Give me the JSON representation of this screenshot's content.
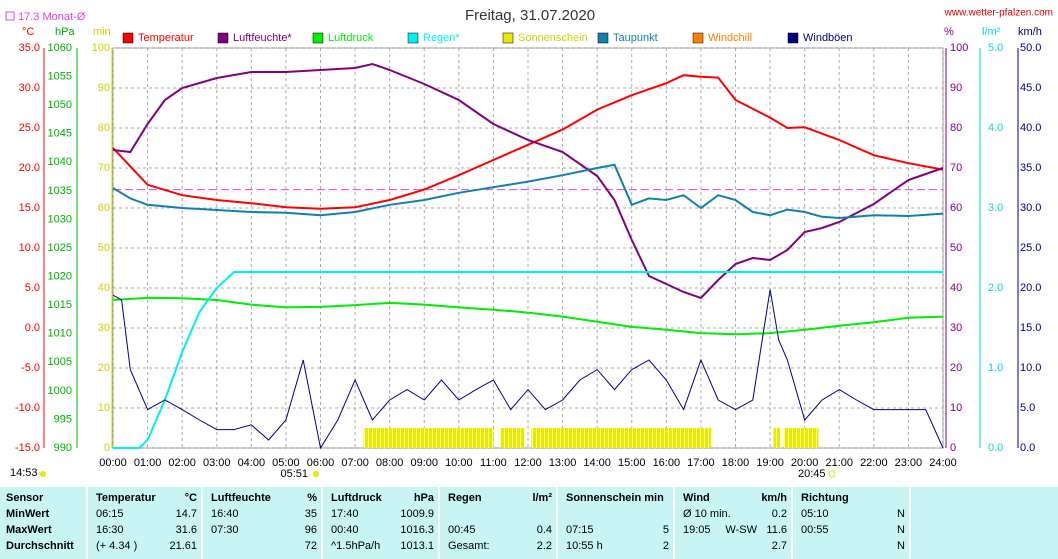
{
  "chart_data": {
    "type": "line",
    "title": "Freitag, 31.07.2020",
    "source": "www.wetter-pfalzen.com",
    "reference": {
      "value": 17.3,
      "label": "17.3 Monat-Ø",
      "color": "#e040e0",
      "axis": "°C"
    },
    "updated": "14:53",
    "sunrise": "05:51",
    "sunset": "20:45",
    "grid": true,
    "xlim": [
      0,
      24
    ],
    "xticks": [
      {
        "value": 0,
        "label": "00:00"
      },
      {
        "value": 1,
        "label": "01:00"
      },
      {
        "value": 2,
        "label": "02:00"
      },
      {
        "value": 3,
        "label": "03:00"
      },
      {
        "value": 4,
        "label": "04:00"
      },
      {
        "value": 5,
        "label": "05:00"
      },
      {
        "value": 6,
        "label": "06:00"
      },
      {
        "value": 7,
        "label": "07:00"
      },
      {
        "value": 8,
        "label": "08:00"
      },
      {
        "value": 9,
        "label": "09:00"
      },
      {
        "value": 10,
        "label": "10:00"
      },
      {
        "value": 11,
        "label": "11:00"
      },
      {
        "value": 12,
        "label": "12:00"
      },
      {
        "value": 13,
        "label": "13:00"
      },
      {
        "value": 14,
        "label": "14:00"
      },
      {
        "value": 15,
        "label": "15:00"
      },
      {
        "value": 16,
        "label": "16:00"
      },
      {
        "value": 17,
        "label": "17:00"
      },
      {
        "value": 18,
        "label": "18:00"
      },
      {
        "value": 19,
        "label": "19:00"
      },
      {
        "value": 20,
        "label": "20:00"
      },
      {
        "value": 21,
        "label": "21:00"
      },
      {
        "value": 22,
        "label": "22:00"
      },
      {
        "value": 23,
        "label": "23:00"
      },
      {
        "value": 24,
        "label": "24:00"
      }
    ],
    "axes": [
      {
        "unit": "°C",
        "side": "left",
        "color": "#ff0000",
        "lim": [
          -15,
          35
        ],
        "ticks": [
          {
            "value": 35,
            "label": "35.0"
          },
          {
            "value": 30,
            "label": "30.0"
          },
          {
            "value": 25,
            "label": "25.0"
          },
          {
            "value": 20,
            "label": "20.0"
          },
          {
            "value": 15,
            "label": "15.0"
          },
          {
            "value": 10,
            "label": "10.0"
          },
          {
            "value": 5,
            "label": "5.0"
          },
          {
            "value": 0,
            "label": "0.0"
          },
          {
            "value": -5,
            "label": "-5.0"
          },
          {
            "value": -10,
            "label": "-10.0"
          },
          {
            "value": -15,
            "label": "-15.0"
          }
        ]
      },
      {
        "unit": "hPa",
        "side": "left",
        "color": "#00b000",
        "lim": [
          990,
          1060
        ],
        "ticks": [
          1060,
          1055,
          1050,
          1045,
          1040,
          1035,
          1030,
          1025,
          1020,
          1015,
          1010,
          1005,
          1000,
          995,
          990
        ]
      },
      {
        "unit": "min",
        "side": "left",
        "color": "#d0d000",
        "lim": [
          0,
          100
        ],
        "ticks": [
          100,
          90,
          80,
          70,
          60,
          50,
          40,
          30,
          20,
          10,
          0
        ]
      },
      {
        "unit": "%",
        "side": "right",
        "color": "#800080",
        "lim": [
          0,
          100
        ],
        "ticks": [
          100,
          90,
          80,
          70,
          60,
          50,
          40,
          30,
          20,
          10,
          0
        ]
      },
      {
        "unit": "l/m²",
        "side": "right",
        "color": "#00d8d8",
        "lim": [
          0,
          5
        ],
        "ticks": [
          {
            "value": 5,
            "label": "5.0"
          },
          {
            "value": 4,
            "label": "4.0"
          },
          {
            "value": 3,
            "label": "3.0"
          },
          {
            "value": 2,
            "label": "2.0"
          },
          {
            "value": 1,
            "label": "1.0"
          },
          {
            "value": 0,
            "label": "0.0"
          }
        ]
      },
      {
        "unit": "km/h",
        "side": "right",
        "color": "#000080",
        "lim": [
          0,
          50
        ],
        "ticks": [
          {
            "value": 50,
            "label": "50.0"
          },
          {
            "value": 45,
            "label": "45.0"
          },
          {
            "value": 40,
            "label": "40.0"
          },
          {
            "value": 35,
            "label": "35.0"
          },
          {
            "value": 30,
            "label": "30.0"
          },
          {
            "value": 25,
            "label": "25.0"
          },
          {
            "value": 20,
            "label": "20.0"
          },
          {
            "value": 15,
            "label": "15.0"
          },
          {
            "value": 10,
            "label": "10.0"
          },
          {
            "value": 5,
            "label": "5.0"
          },
          {
            "value": 0,
            "label": "0.0"
          }
        ]
      }
    ],
    "series": [
      {
        "name": "Temperatur",
        "color": "#ff0000",
        "axis": "°C",
        "x": [
          0,
          1,
          2,
          3,
          4,
          5,
          6,
          7,
          8,
          9,
          10,
          11,
          12,
          13,
          14,
          15,
          16,
          16.5,
          17,
          17.5,
          18,
          19,
          19.5,
          20,
          21,
          22,
          23,
          24
        ],
        "values": [
          22.5,
          17.9,
          16.6,
          16,
          15.6,
          15.1,
          14.9,
          15.1,
          16,
          17.3,
          19.1,
          21,
          22.9,
          24.8,
          27.3,
          29.1,
          30.6,
          31.6,
          31.4,
          31.3,
          28.5,
          26.3,
          25,
          25.1,
          23.5,
          21.6,
          20.6,
          19.8
        ]
      },
      {
        "name": "Luftfeuchte*",
        "color": "#800080",
        "axis": "%",
        "x": [
          0,
          0.5,
          1,
          1.5,
          2,
          3,
          4,
          5,
          6,
          7,
          7.5,
          8,
          9,
          10,
          11,
          12,
          13,
          14,
          14.5,
          15,
          15.5,
          16,
          16.5,
          17,
          17.5,
          18,
          18.5,
          19,
          19.5,
          20,
          20.5,
          21,
          22,
          23,
          24
        ],
        "values": [
          74.5,
          74,
          81,
          87,
          90,
          92.5,
          94,
          94,
          94.5,
          95,
          96,
          94.5,
          91,
          87,
          81,
          77,
          74,
          68,
          62,
          52,
          43,
          41,
          39,
          37.5,
          42,
          46,
          47.5,
          47,
          49.5,
          54,
          55,
          56.5,
          61,
          67,
          70
        ]
      },
      {
        "name": "Luftdruck",
        "color": "#00ee00",
        "axis": "hPa",
        "x": [
          0,
          1,
          2,
          3,
          4,
          5,
          6,
          7,
          8,
          9,
          10,
          11,
          12,
          13,
          14,
          15,
          16,
          17,
          18,
          19,
          20,
          21,
          22,
          23,
          24
        ],
        "values": [
          1015.9,
          1016.3,
          1016.2,
          1015.9,
          1015.1,
          1014.6,
          1014.7,
          1015,
          1015.4,
          1015.1,
          1014.6,
          1014.2,
          1013.7,
          1013,
          1012.1,
          1011.2,
          1010.7,
          1010.1,
          1009.9,
          1010.1,
          1010.7,
          1011.4,
          1012,
          1012.8,
          1013
        ]
      },
      {
        "name": "Regen*",
        "color": "#00f0f0",
        "axis": "l/m²",
        "x": [
          0,
          0.75,
          1,
          1.5,
          2,
          2.5,
          3,
          3.5,
          24
        ],
        "values": [
          0,
          0,
          0.1,
          0.6,
          1.2,
          1.7,
          2,
          2.2,
          2.2
        ]
      },
      {
        "name": "Sonnenschein",
        "color": "#e8e800",
        "axis": "min",
        "kind": "bar",
        "x": [
          7.25,
          11.2,
          12.1,
          19.1,
          19.4
        ],
        "x_end": [
          11,
          11.9,
          17.3,
          19.3,
          20.4
        ],
        "values": [
          5,
          5,
          5,
          5,
          5
        ]
      },
      {
        "name": "Taupunkt",
        "color": "#1080b0",
        "axis": "°C",
        "x": [
          0,
          0.5,
          1,
          2,
          3,
          4,
          5,
          6,
          7,
          8,
          9,
          10,
          11,
          12,
          13,
          14,
          14.5,
          15,
          15.5,
          16,
          16.5,
          17,
          17.5,
          18,
          18.5,
          19,
          19.5,
          20,
          20.5,
          21,
          22,
          23,
          24
        ],
        "values": [
          17.5,
          16.2,
          15.4,
          15,
          14.75,
          14.5,
          14.4,
          14.1,
          14.5,
          15.4,
          16,
          16.9,
          17.6,
          18.3,
          19.1,
          20,
          20.4,
          15.4,
          16.2,
          16,
          16.6,
          15,
          16.6,
          16,
          14.5,
          14.1,
          14.8,
          14.5,
          13.9,
          13.75,
          14.1,
          14,
          14.3
        ]
      },
      {
        "name": "Windchill",
        "color": "#ff8000",
        "axis": "°C",
        "x": [],
        "values": []
      },
      {
        "name": "Windböen",
        "color": "#000080",
        "axis": "km/h",
        "x": [
          0,
          0.25,
          0.5,
          1,
          1.5,
          2,
          2.5,
          3,
          3.5,
          4,
          4.5,
          5,
          5.5,
          6,
          6.5,
          7,
          7.5,
          8,
          8.5,
          9,
          9.5,
          10,
          10.5,
          11,
          11.5,
          12,
          12.5,
          13,
          13.5,
          14,
          14.5,
          15,
          15.5,
          16,
          16.5,
          17,
          17.5,
          18,
          18.5,
          19,
          19.25,
          19.5,
          20,
          20.5,
          21,
          21.5,
          22,
          22.5,
          23,
          23.5,
          24
        ],
        "values": [
          19.1,
          18.5,
          9.8,
          4.8,
          6,
          4.8,
          3.5,
          2.3,
          2.3,
          2.9,
          1,
          3.5,
          11,
          0,
          3.5,
          8.5,
          3.5,
          6,
          7.3,
          6,
          8.5,
          6,
          7.3,
          8.5,
          4.8,
          7.3,
          4.8,
          6,
          8.5,
          9.8,
          7.3,
          9.8,
          11,
          8.5,
          4.8,
          11,
          6,
          4.8,
          6,
          19.8,
          13.5,
          11,
          3.5,
          6,
          7.3,
          6,
          4.8,
          4.8,
          4.8,
          4.8,
          0
        ]
      }
    ]
  },
  "table": {
    "headers": [
      [
        "Sensor"
      ],
      [
        "Temperatur",
        "°C"
      ],
      [
        "Luftfeuchte",
        "%"
      ],
      [
        "Luftdruck",
        "hPa"
      ],
      [
        "Regen",
        "l/m²"
      ],
      [
        "Sonnenschein min"
      ],
      [
        "Wind",
        "km/h"
      ],
      [
        "Richtung"
      ]
    ],
    "rows": [
      {
        "label": "MinWert",
        "cells": [
          [
            "06:15",
            "14.7"
          ],
          [
            "16:40",
            "35"
          ],
          [
            "17:40",
            "1009.9"
          ],
          [],
          [],
          [
            "Ø 10 min.",
            "0.2"
          ],
          [
            "05:10",
            "N"
          ]
        ]
      },
      {
        "label": "MaxWert",
        "cells": [
          [
            "16:30",
            "31.6"
          ],
          [
            "07:30",
            "96"
          ],
          [
            "00:40",
            "1016.3"
          ],
          [
            "00:45",
            "0.4"
          ],
          [
            "07:15",
            "5"
          ],
          [
            "19:05",
            "W-SW",
            "11.6"
          ],
          [
            "00:55",
            "N"
          ]
        ]
      },
      {
        "label": "Durchschnitt",
        "cells": [
          [
            "(+ 4.34 )",
            "21.61"
          ],
          [
            "72"
          ],
          [
            "^1.5hPa/h",
            "1013.1"
          ],
          [
            "Gesamt:",
            "2.2"
          ],
          [
            "10:55 h",
            "2"
          ],
          [
            "2.7"
          ],
          [
            "N"
          ]
        ]
      }
    ]
  }
}
